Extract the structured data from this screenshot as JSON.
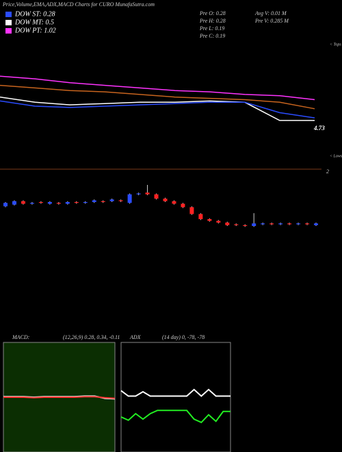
{
  "header": {
    "title": "Price,Volume,EMA,ADX,MACD Charts for CURO MunafaSutra.com"
  },
  "legend": [
    {
      "label": "DOW ST: 0.28",
      "color": "#2a4cff"
    },
    {
      "label": "DOW MT: 0.5",
      "color": "#ffffff"
    },
    {
      "label": "DOW PT: 1.02",
      "color": "#ff33ff"
    }
  ],
  "stats": [
    "Pre  O: 0.28",
    "Pre  H: 0.28",
    "Pre  L: 0.19",
    "Pre  C: 0.19",
    "Avg V: 0.01 M",
    "Pre  V: 0.285 M"
  ],
  "chart_data": [
    {
      "type": "line",
      "labels": [
        "< Tops",
        "< Lows"
      ],
      "price_label": 4.73,
      "scale_label": 2,
      "categories": [
        null,
        null,
        null,
        null,
        null,
        null,
        null,
        null,
        null,
        null
      ],
      "ylim": [
        0,
        10
      ],
      "series": [
        {
          "color": "#ff33ff",
          "values": [
            7.3,
            7.1,
            6.8,
            6.6,
            6.4,
            6.2,
            6.1,
            5.9,
            5.8,
            5.5
          ]
        },
        {
          "color": "#c8641e",
          "values": [
            6.6,
            6.4,
            6.2,
            6.1,
            5.9,
            5.7,
            5.6,
            5.5,
            5.3,
            4.8
          ]
        },
        {
          "color": "#ffffff",
          "values": [
            5.7,
            5.3,
            5.1,
            5.2,
            5.3,
            5.3,
            5.4,
            5.3,
            3.9,
            3.9
          ]
        },
        {
          "color": "#2a4cff",
          "values": [
            5.4,
            5.0,
            4.9,
            5.0,
            5.1,
            5.2,
            5.3,
            5.3,
            4.5,
            4.1
          ]
        }
      ]
    },
    {
      "type": "candlestick",
      "up_color": "#2a4cff",
      "down_color": "#ff2222",
      "ylim": [
        0.1,
        0.7
      ],
      "categories": [
        null,
        null,
        null,
        null,
        null,
        null,
        null,
        null,
        null,
        null,
        null,
        null,
        null,
        null,
        null,
        null,
        null,
        null,
        null,
        null,
        null,
        null,
        null,
        null,
        null,
        null,
        null,
        null,
        null,
        null,
        null,
        null,
        null,
        null,
        null,
        null
      ],
      "open": [
        0.41,
        0.43,
        0.47,
        0.44,
        0.46,
        0.44,
        0.45,
        0.44,
        0.46,
        0.45,
        0.46,
        0.47,
        0.47,
        0.48,
        0.45,
        0.55,
        0.57,
        0.55,
        0.5,
        0.47,
        0.44,
        0.4,
        0.32,
        0.26,
        0.24,
        0.22,
        0.2,
        0.19,
        0.18,
        0.2,
        0.21,
        0.2,
        0.21,
        0.2,
        0.21,
        0.19
      ],
      "close": [
        0.45,
        0.47,
        0.44,
        0.45,
        0.45,
        0.46,
        0.44,
        0.46,
        0.45,
        0.46,
        0.48,
        0.46,
        0.49,
        0.47,
        0.55,
        0.56,
        0.55,
        0.5,
        0.47,
        0.44,
        0.4,
        0.32,
        0.26,
        0.24,
        0.22,
        0.19,
        0.19,
        0.18,
        0.21,
        0.21,
        0.2,
        0.21,
        0.2,
        0.21,
        0.2,
        0.21
      ],
      "high": [
        0.46,
        0.48,
        0.48,
        0.46,
        0.47,
        0.47,
        0.46,
        0.47,
        0.47,
        0.47,
        0.49,
        0.48,
        0.5,
        0.49,
        0.56,
        0.57,
        0.66,
        0.56,
        0.51,
        0.48,
        0.45,
        0.41,
        0.33,
        0.27,
        0.25,
        0.23,
        0.21,
        0.2,
        0.33,
        0.22,
        0.22,
        0.22,
        0.22,
        0.22,
        0.22,
        0.22
      ],
      "low": [
        0.4,
        0.42,
        0.43,
        0.43,
        0.44,
        0.43,
        0.43,
        0.43,
        0.44,
        0.44,
        0.45,
        0.45,
        0.46,
        0.46,
        0.44,
        0.54,
        0.54,
        0.49,
        0.46,
        0.43,
        0.39,
        0.31,
        0.25,
        0.23,
        0.21,
        0.18,
        0.18,
        0.17,
        0.17,
        0.19,
        0.19,
        0.19,
        0.19,
        0.19,
        0.19,
        0.18
      ]
    },
    {
      "type": "line",
      "title": "MACD:",
      "subtitle": "(12,26,9) 0.28, 0.34, -0.11",
      "background": "#0b2e02",
      "categories": [
        null,
        null,
        null,
        null,
        null,
        null,
        null,
        null,
        null,
        null,
        null,
        null
      ],
      "ylim": [
        -1,
        1
      ],
      "series": [
        {
          "color": "#ffffff",
          "values": [
            0.01,
            0.01,
            0.01,
            0.0,
            0.01,
            0.01,
            0.01,
            0.01,
            0.02,
            0.02,
            -0.02,
            -0.03
          ]
        },
        {
          "color": "#ff3333",
          "values": [
            0.0,
            0.0,
            0.0,
            -0.01,
            0.0,
            0.0,
            0.0,
            0.0,
            0.01,
            0.01,
            -0.01,
            -0.02
          ]
        }
      ]
    },
    {
      "type": "line",
      "title": "ADX",
      "subtitle": "(14 day) 0, -78, -78",
      "background": "#000000",
      "categories": [
        null,
        null,
        null,
        null,
        null,
        null,
        null,
        null,
        null,
        null,
        null,
        null,
        null,
        null,
        null,
        null
      ],
      "ylim": [
        0,
        100
      ],
      "series": [
        {
          "color": "#ffffff",
          "values": [
            56,
            51,
            51,
            55,
            51,
            51,
            51,
            51,
            51,
            51,
            57,
            51,
            57,
            51,
            51,
            51
          ]
        },
        {
          "color": "#22ee22",
          "values": [
            32,
            29,
            35,
            30,
            35,
            38,
            38,
            38,
            38,
            38,
            30,
            27,
            34,
            28,
            37,
            37
          ]
        }
      ]
    }
  ]
}
